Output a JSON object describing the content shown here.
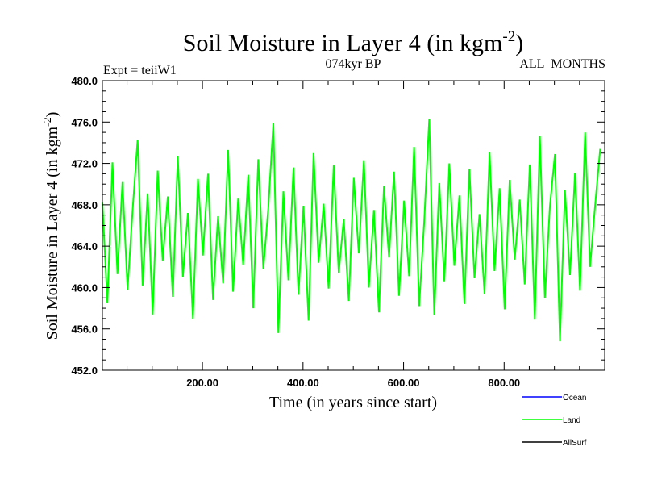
{
  "chart_data": {
    "type": "line",
    "title": "Soil Moisture in Layer 4 (in kgm",
    "title_sup": "-2",
    "title_close": ")",
    "left_subtitle": "Expt = teiiW1",
    "center_subtitle": "074kyr BP",
    "right_subtitle": "ALL_MONTHS",
    "xlabel": "Time (in years since start)",
    "ylabel": "Soil Moisture in Layer 4 (in kgm",
    "ylabel_sup": "-2",
    "ylabel_close": ")",
    "xlim": [
      1,
      1000
    ],
    "ylim": [
      452,
      480
    ],
    "x_ticks": [
      200,
      400,
      600,
      800
    ],
    "x_tick_labels": [
      "200.00",
      "400.00",
      "600.00",
      "800.00"
    ],
    "y_ticks": [
      452,
      456,
      460,
      464,
      468,
      472,
      476,
      480
    ],
    "y_tick_labels": [
      "452.0",
      "456.0",
      "460.0",
      "464.0",
      "468.0",
      "472.0",
      "476.0",
      "480.0"
    ],
    "grid": false,
    "legend_position": "bottom-right",
    "series": [
      {
        "name": "Ocean",
        "color": "#0000ff",
        "values": []
      },
      {
        "name": "Land",
        "color": "#00ff00",
        "x_start": 1,
        "x_step": 10,
        "values": [
          468.2,
          458.5,
          472.1,
          461.3,
          470.2,
          459.8,
          467.4,
          474.3,
          460.2,
          469.1,
          457.4,
          471.3,
          462.6,
          468.8,
          459.1,
          472.7,
          461.0,
          467.2,
          457.0,
          470.5,
          463.1,
          471.0,
          458.8,
          466.9,
          460.4,
          473.3,
          459.6,
          468.6,
          462.2,
          470.9,
          458.0,
          472.4,
          461.8,
          467.7,
          475.9,
          455.6,
          469.3,
          460.7,
          471.6,
          459.3,
          467.9,
          456.8,
          473.0,
          462.4,
          468.1,
          459.9,
          471.8,
          461.4,
          466.6,
          458.7,
          470.6,
          463.3,
          472.3,
          460.0,
          467.5,
          457.6,
          469.8,
          462.9,
          471.2,
          459.2,
          468.4,
          461.1,
          473.6,
          458.2,
          466.3,
          476.3,
          457.3,
          470.1,
          460.6,
          472.0,
          462.1,
          468.9,
          458.4,
          471.5,
          460.9,
          467.1,
          459.4,
          473.1,
          461.6,
          469.6,
          457.9,
          470.4,
          462.7,
          468.5,
          460.3,
          471.9,
          456.9,
          474.7,
          459.0,
          467.8,
          472.9,
          454.8,
          469.4,
          461.2,
          471.1,
          459.7,
          475.0,
          462.0,
          468.0,
          473.4
        ]
      },
      {
        "name": "AllSurf",
        "color": "#000000",
        "values": []
      }
    ]
  }
}
